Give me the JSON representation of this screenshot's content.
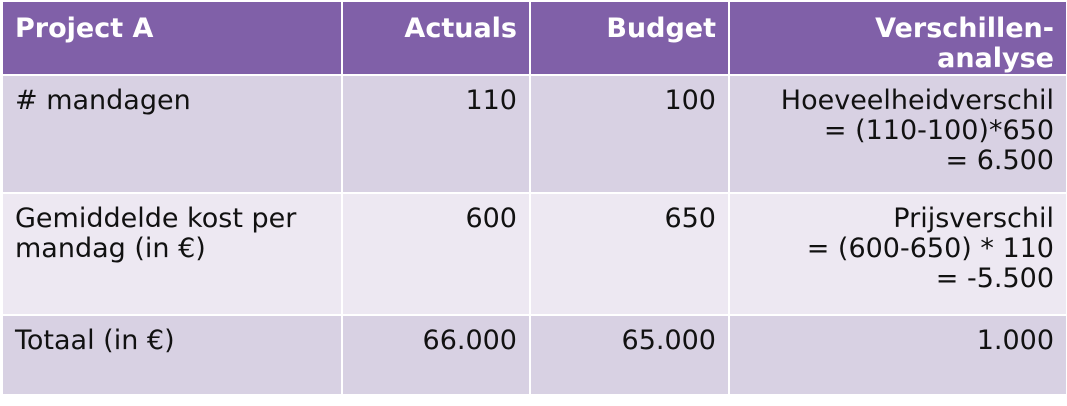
{
  "header": {
    "project": "Project A",
    "actuals": "Actuals",
    "budget": "Budget",
    "analysis_line1": "Verschillen-",
    "analysis_line2": "analyse"
  },
  "rows": [
    {
      "label_line1": "# mandagen",
      "label_line2": "",
      "actuals": "110",
      "budget": "100",
      "analysis": [
        "Hoeveelheidverschil",
        "= (110-100)*650",
        "= 6.500"
      ]
    },
    {
      "label_line1": "Gemiddelde kost per",
      "label_line2": "mandag (in €)",
      "actuals": "600",
      "budget": "650",
      "analysis": [
        "Prijsverschil",
        "= (600-650) * 110",
        "= -5.500"
      ]
    },
    {
      "label_line1": "Totaal (in €)",
      "label_line2": "",
      "actuals": "66.000",
      "budget": "65.000",
      "analysis": [
        "1.000"
      ]
    }
  ],
  "colors": {
    "header_bg": "#8060a8",
    "row_dark": "#d8d1e3",
    "row_light": "#ede8f2"
  }
}
